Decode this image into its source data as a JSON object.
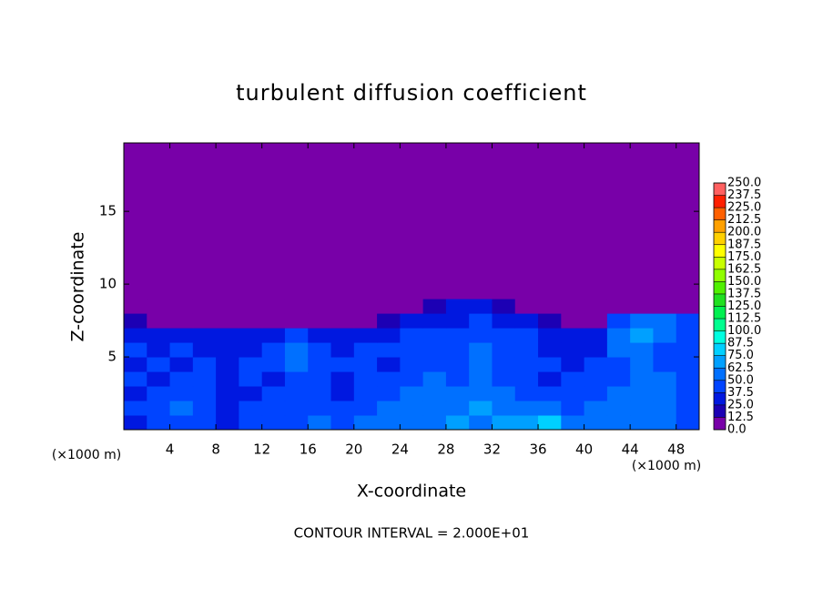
{
  "chart_data": {
    "type": "heatmap",
    "title": "turbulent diffusion coefficient",
    "xlabel": "X-coordinate",
    "ylabel": "Z-coordinate",
    "x_unit": "(×1000 m)",
    "y_unit": "(×1000 m)",
    "annotation": "CONTOUR INTERVAL = 2.000E+01",
    "xlim": [
      0,
      50
    ],
    "ylim": [
      0,
      19.7
    ],
    "xticks": [
      4,
      8,
      12,
      16,
      20,
      24,
      28,
      32,
      36,
      40,
      44,
      48
    ],
    "yticks": [
      5,
      10,
      15
    ],
    "x_edges": [
      0,
      2,
      4,
      6,
      8,
      10,
      12,
      14,
      16,
      18,
      20,
      22,
      24,
      26,
      28,
      30,
      32,
      34,
      36,
      38,
      40,
      42,
      44,
      46,
      48,
      50
    ],
    "z_edges": [
      0,
      1,
      2,
      3,
      4,
      5,
      6,
      7,
      8,
      9,
      19.7
    ],
    "values": [
      [
        37,
        40,
        45,
        40,
        37,
        40,
        45,
        40,
        50,
        45,
        50,
        55,
        60,
        55,
        65,
        60,
        65,
        70,
        75,
        60,
        55,
        50,
        60,
        55,
        45
      ],
      [
        40,
        45,
        50,
        40,
        35,
        40,
        45,
        40,
        45,
        40,
        45,
        50,
        55,
        60,
        60,
        65,
        55,
        50,
        50,
        45,
        50,
        55,
        60,
        55,
        45
      ],
      [
        35,
        40,
        45,
        40,
        35,
        35,
        40,
        45,
        40,
        35,
        40,
        45,
        50,
        55,
        55,
        60,
        50,
        45,
        40,
        40,
        45,
        50,
        55,
        55,
        45
      ],
      [
        40,
        35,
        40,
        45,
        35,
        40,
        35,
        45,
        40,
        35,
        40,
        40,
        45,
        50,
        45,
        55,
        45,
        40,
        35,
        40,
        40,
        45,
        50,
        55,
        40
      ],
      [
        35,
        40,
        35,
        40,
        35,
        40,
        40,
        50,
        40,
        40,
        45,
        35,
        40,
        45,
        45,
        55,
        40,
        40,
        40,
        35,
        40,
        45,
        55,
        45,
        40
      ],
      [
        40,
        35,
        40,
        35,
        35,
        35,
        45,
        55,
        40,
        35,
        40,
        40,
        40,
        45,
        40,
        50,
        45,
        40,
        35,
        30,
        35,
        50,
        60,
        45,
        40
      ],
      [
        35,
        30,
        30,
        30,
        30,
        30,
        35,
        45,
        35,
        30,
        35,
        35,
        40,
        40,
        40,
        45,
        40,
        40,
        30,
        25,
        30,
        55,
        70,
        50,
        40
      ],
      [
        20,
        10,
        10,
        10,
        10,
        10,
        10,
        10,
        10,
        10,
        10,
        15,
        30,
        35,
        35,
        40,
        35,
        30,
        15,
        10,
        10,
        40,
        60,
        60,
        45
      ],
      [
        0,
        0,
        0,
        0,
        0,
        0,
        0,
        0,
        0,
        0,
        0,
        0,
        10,
        20,
        25,
        25,
        20,
        10,
        0,
        0,
        0,
        10,
        10,
        10,
        5
      ],
      [
        0,
        0,
        0,
        0,
        0,
        0,
        0,
        0,
        0,
        0,
        0,
        0,
        0,
        0,
        0,
        0,
        0,
        0,
        0,
        0,
        0,
        0,
        0,
        0,
        0
      ]
    ],
    "colorbar": {
      "ticks": [
        {
          "value": 0,
          "label": "0.0"
        },
        12.5,
        {
          "value": 25,
          "label": "25.0"
        },
        37.5,
        {
          "value": 50,
          "label": "50.0"
        },
        62.5,
        {
          "value": 75,
          "label": "75.0"
        },
        87.5,
        {
          "value": 100,
          "label": "100.0"
        },
        112.5,
        {
          "value": 125,
          "label": "125.0"
        },
        137.5,
        {
          "value": 150,
          "label": "150.0"
        },
        162.5,
        {
          "value": 175,
          "label": "175.0"
        },
        187.5,
        {
          "value": 200,
          "label": "200.0"
        },
        212.5,
        {
          "value": 225,
          "label": "225.0"
        },
        237.5,
        {
          "value": 250,
          "label": "250.0"
        }
      ],
      "colors": [
        "#7800a8",
        "#1c00b4",
        "#0018e0",
        "#0044ff",
        "#0070ff",
        "#00a0ff",
        "#00d0ff",
        "#00ffe0",
        "#00ff90",
        "#00f050",
        "#20e020",
        "#50f000",
        "#90ff00",
        "#c8ff00",
        "#ffff00",
        "#ffd000",
        "#ffa000",
        "#ff6000",
        "#ff2000",
        "#ff6060"
      ]
    }
  }
}
